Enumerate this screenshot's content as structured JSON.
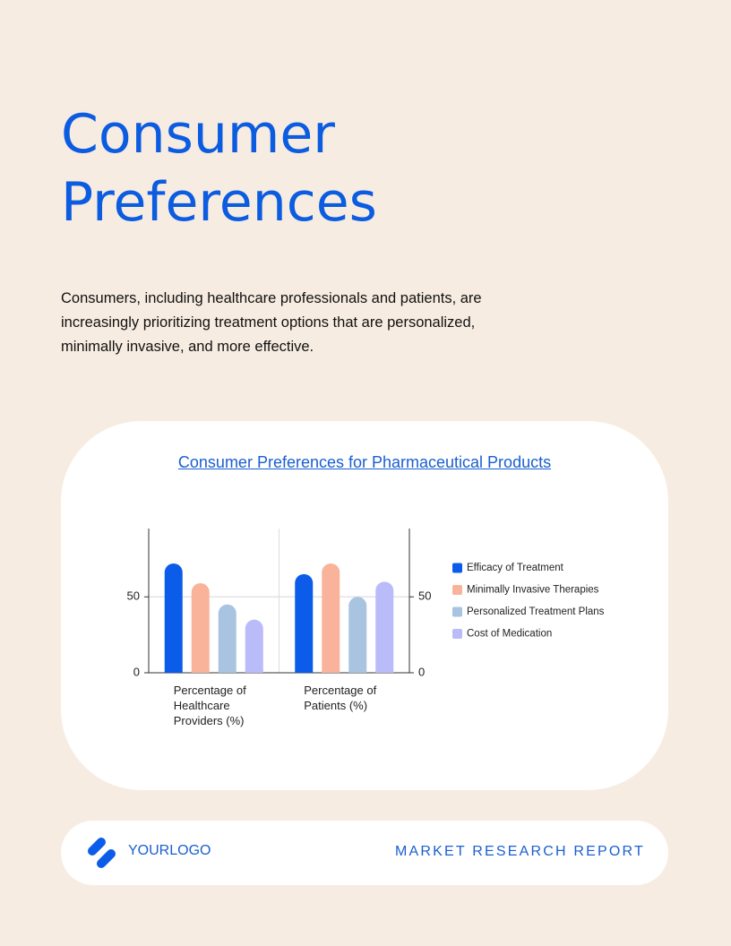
{
  "header": {
    "title": "Consumer Preferences"
  },
  "intro": "Consumers, including healthcare professionals and patients, are increasingly prioritizing treatment options that are personalized, minimally invasive, and more effective.",
  "chart_data": {
    "type": "bar",
    "title": "Consumer Preferences for Pharmaceutical Products",
    "categories": [
      "Percentage of Healthcare Providers (%)",
      "Percentage of Patients (%)"
    ],
    "series": [
      {
        "name": "Efficacy of Treatment",
        "color": "#0b5ce8",
        "values": [
          72,
          65
        ]
      },
      {
        "name": "Minimally Invasive Therapies",
        "color": "#f9b39a",
        "values": [
          59,
          72
        ]
      },
      {
        "name": "Personalized Treatment Plans",
        "color": "#a9c4e0",
        "values": [
          45,
          50
        ]
      },
      {
        "name": "Cost of Medication",
        "color": "#b9bcf8",
        "values": [
          35,
          60
        ]
      }
    ],
    "ylim": [
      0,
      95
    ],
    "yticks": [
      0,
      50
    ],
    "y2lim": [
      0,
      95
    ],
    "y2ticks": [
      0,
      50
    ],
    "grid": true,
    "legend": "right"
  },
  "footer": {
    "logo": "YOURLOGO",
    "label": "MARKET RESEARCH REPORT"
  }
}
